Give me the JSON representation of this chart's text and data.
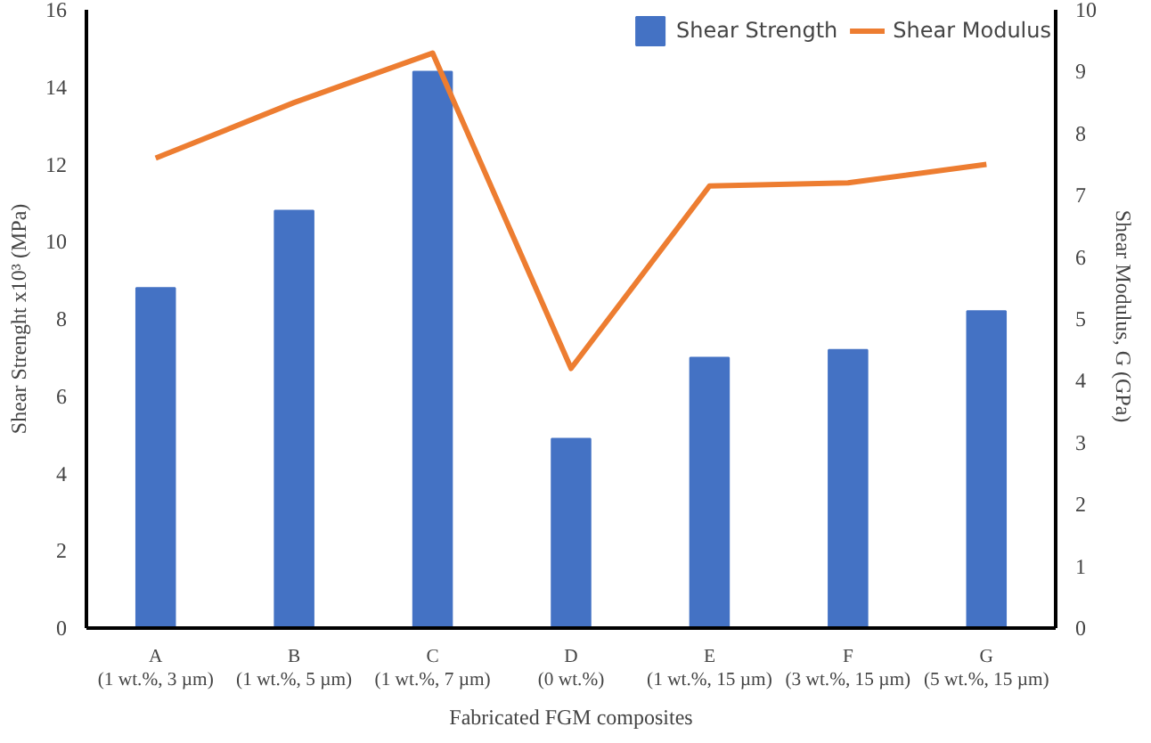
{
  "chart_data": {
    "type": "bar",
    "xlabel": "Fabricated FGM composites",
    "ylabel": "Shear Strenght x10³ (MPa)",
    "y2label": "Shear Modulus, G  (GPa)",
    "categories": [
      "A (1 wt.%, 3 µm)",
      "B (1 wt.%, 5 µm)",
      "C (1 wt.%, 7 µm)",
      "D (0 wt.%)",
      "E (1 wt.%, 15 µm)",
      "F (3 wt.%, 15 µm)",
      "G (5 wt.%, 15 µm)"
    ],
    "series": [
      {
        "name": "Shear Strength",
        "color": "#4472c4",
        "values": [
          8.8,
          10.8,
          14.4,
          4.9,
          7.0,
          7.2,
          8.2
        ]
      },
      {
        "name": "Shear Modulus",
        "type": "line",
        "axis": "y2",
        "color": "#ed7d31",
        "values": [
          7.6,
          8.5,
          9.3,
          4.2,
          7.15,
          7.2,
          7.5
        ]
      }
    ],
    "ylim": [
      0,
      16
    ],
    "yticks": [
      0,
      2,
      4,
      6,
      8,
      10,
      12,
      14,
      16
    ],
    "y2lim": [
      0,
      10
    ],
    "y2ticks": [
      0,
      1,
      2,
      3,
      4,
      5,
      6,
      7,
      8,
      9,
      10
    ],
    "grid": false,
    "legend": "top right"
  }
}
